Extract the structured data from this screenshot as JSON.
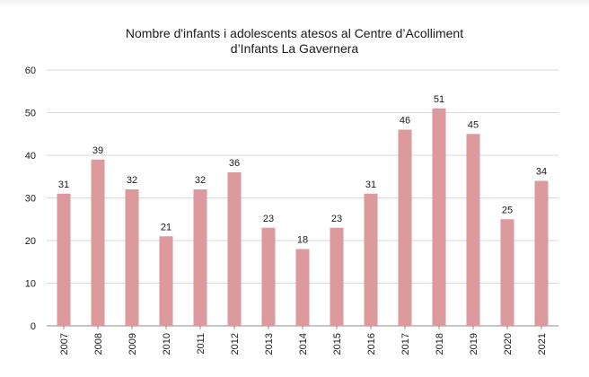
{
  "chart_data": {
    "type": "bar",
    "title": [
      "Nombre d'infants i adolescents atesos al Centre d’Acolliment",
      "d’Infants La Gavernera"
    ],
    "xlabel": "",
    "ylabel": "",
    "categories": [
      "2007",
      "2008",
      "2009",
      "2010",
      "2011",
      "2012",
      "2013",
      "2014",
      "2015",
      "2016",
      "2017",
      "2018",
      "2019",
      "2020",
      "2021"
    ],
    "values": [
      31,
      39,
      32,
      21,
      32,
      36,
      23,
      18,
      23,
      31,
      46,
      51,
      45,
      25,
      34
    ],
    "ylim": [
      0,
      60
    ],
    "yticks": [
      0,
      10,
      20,
      30,
      40,
      50,
      60
    ],
    "grid": true,
    "legend": "none",
    "data_labels": true,
    "colors": {
      "bar": "#dc9a9c",
      "grid": "#d9d9d9",
      "axis": "#8c8c8c",
      "text": "#1a1a1a"
    }
  }
}
